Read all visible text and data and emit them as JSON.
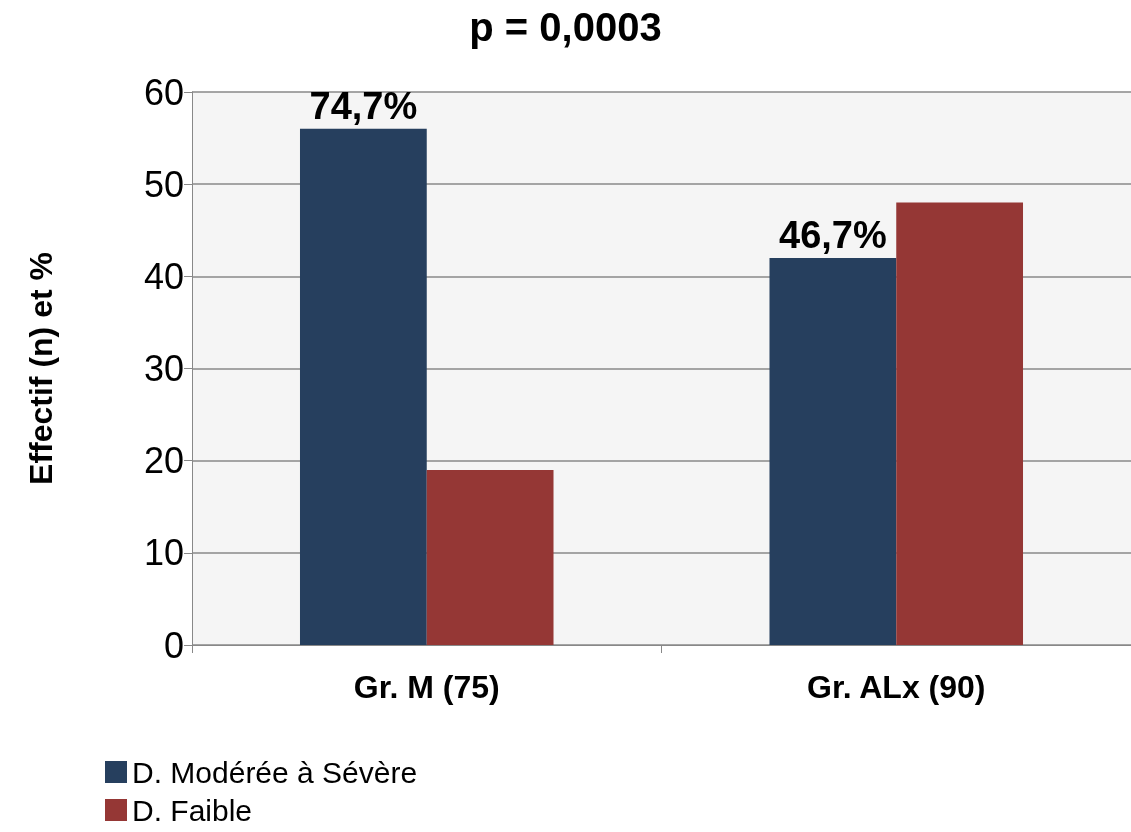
{
  "chart_data": {
    "type": "bar",
    "title": "p = 0,0003",
    "ylabel": "Effectif (n) et %",
    "categories": [
      "Gr. M (75)",
      "Gr. ALx (90)"
    ],
    "series": [
      {
        "name": "D. Modérée à Sévère",
        "color": "#263f5e",
        "values": [
          56,
          42
        ]
      },
      {
        "name": "D. Faible",
        "color": "#953735",
        "values": [
          19,
          48
        ]
      }
    ],
    "annotations": [
      {
        "text": "74,7%",
        "x": "Gr. M (75)",
        "y": 56
      },
      {
        "text": "46,7%",
        "x": "Gr. ALx (90)",
        "y": 42
      }
    ],
    "ylim": [
      0,
      60
    ],
    "yticks": [
      0,
      10,
      20,
      30,
      40,
      50,
      60
    ],
    "grid": "y",
    "legend": "bottom left"
  }
}
